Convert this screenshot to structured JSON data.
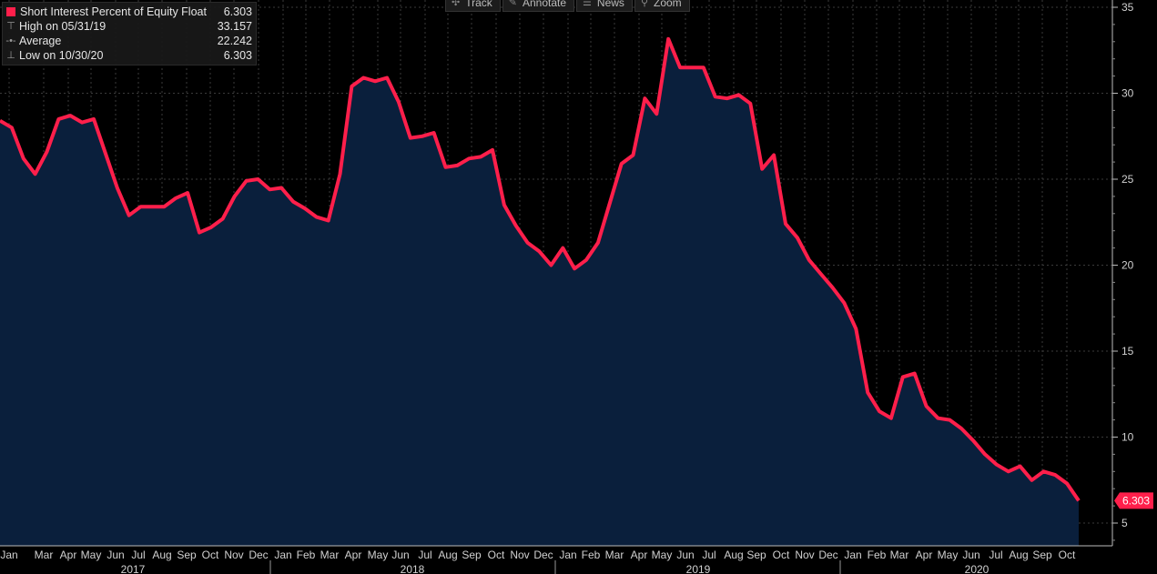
{
  "legend": {
    "series_label": "Short Interest Percent of Equity Float",
    "series_value": "6.303",
    "high_label": "High on 05/31/19",
    "high_value": "33.157",
    "avg_label": "Average",
    "avg_value": "22.242",
    "low_label": "Low on 10/30/20",
    "low_value": "6.303"
  },
  "toolbar": {
    "track": "Track",
    "annotate": "Annotate",
    "news": "News",
    "zoom": "Zoom"
  },
  "colors": {
    "line": "#ff1f4b",
    "fill": "#0a1f3c",
    "background": "#000000",
    "grid": "#3a3a3a"
  },
  "chart_data": {
    "type": "area",
    "title": "",
    "xlabel": "",
    "ylabel": "",
    "ylim": [
      3.5,
      35
    ],
    "yticks": [
      5,
      10,
      15,
      20,
      25,
      30,
      35
    ],
    "last_value_label": "6.303",
    "month_ticks": [
      "Jan",
      "Mar",
      "Apr",
      "May",
      "Jun",
      "Jul",
      "Aug",
      "Sep",
      "Oct",
      "Nov",
      "Dec",
      "Jan",
      "Feb",
      "Mar",
      "Apr",
      "May",
      "Jun",
      "Jul",
      "Aug",
      "Sep",
      "Oct",
      "Nov",
      "Dec",
      "Jan",
      "Feb",
      "Mar",
      "Apr",
      "May",
      "Jun",
      "Jul",
      "Aug",
      "Sep",
      "Oct",
      "Nov",
      "Dec",
      "Jan",
      "Feb",
      "Mar",
      "Apr",
      "May",
      "Jun",
      "Jul",
      "Aug",
      "Sep",
      "Oct"
    ],
    "year_labels": [
      "2017",
      "2018",
      "2019",
      "2020"
    ],
    "series": [
      {
        "name": "Short Interest Percent of Equity Float",
        "values": [
          28.4,
          28.0,
          26.2,
          25.3,
          26.6,
          28.5,
          28.7,
          28.3,
          28.5,
          26.5,
          24.5,
          22.9,
          23.4,
          23.4,
          23.4,
          23.9,
          24.2,
          21.9,
          22.2,
          22.7,
          24.0,
          24.9,
          25.0,
          24.4,
          24.5,
          23.7,
          23.3,
          22.8,
          22.6,
          25.3,
          30.4,
          30.9,
          30.7,
          30.9,
          29.5,
          27.4,
          27.5,
          27.7,
          25.7,
          25.8,
          26.2,
          26.3,
          26.7,
          23.5,
          22.3,
          21.3,
          20.8,
          20.0,
          21.0,
          19.8,
          20.3,
          21.3,
          23.6,
          25.9,
          26.4,
          29.7,
          28.8,
          33.157,
          31.5,
          31.5,
          31.5,
          29.8,
          29.7,
          29.9,
          29.4,
          25.6,
          26.4,
          22.4,
          21.6,
          20.3,
          19.5,
          18.7,
          17.8,
          16.3,
          12.6,
          11.5,
          11.1,
          13.5,
          13.7,
          11.8,
          11.1,
          11.0,
          10.5,
          9.8,
          9.0,
          8.4,
          8.0,
          8.3,
          7.5,
          8.0,
          7.8,
          7.3,
          6.303
        ]
      }
    ]
  }
}
